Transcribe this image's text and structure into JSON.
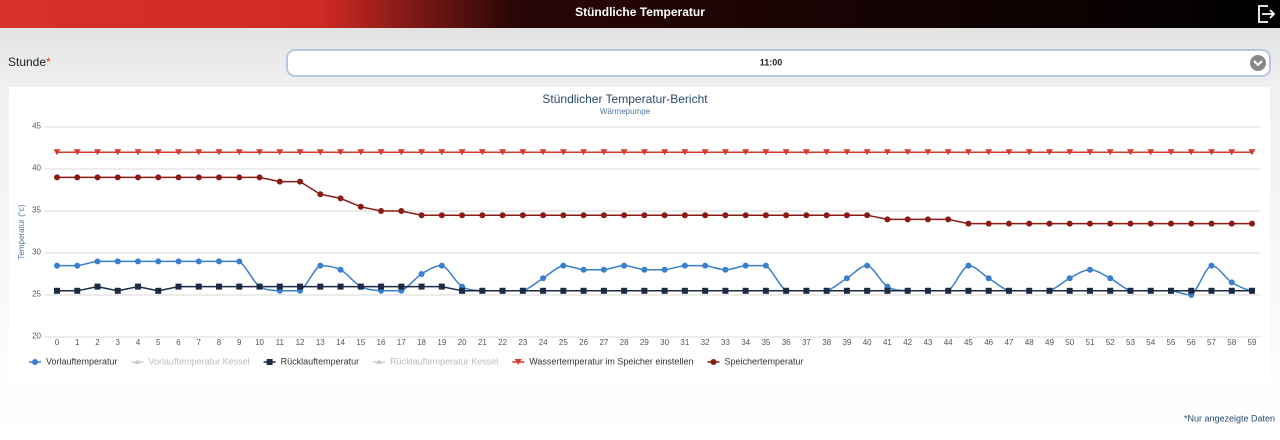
{
  "header": {
    "title": "Stündliche Temperatur"
  },
  "form": {
    "label": "Stunde",
    "required_mark": "*",
    "value": "11:00"
  },
  "footnote": "*Nur angezeigte Daten",
  "chart_data": {
    "type": "line",
    "title": "Stündlicher Temperatur-Bericht",
    "subtitle": "Wärmepumpe",
    "y_label": "Temperatur (°c)",
    "categories": [
      "0",
      "1",
      "2",
      "3",
      "4",
      "5",
      "6",
      "7",
      "8",
      "9",
      "10",
      "11",
      "12",
      "13",
      "14",
      "15",
      "16",
      "17",
      "18",
      "19",
      "20",
      "21",
      "22",
      "23",
      "24",
      "25",
      "26",
      "27",
      "28",
      "29",
      "30",
      "31",
      "32",
      "33",
      "34",
      "35",
      "36",
      "37",
      "38",
      "39",
      "40",
      "41",
      "42",
      "43",
      "44",
      "45",
      "46",
      "47",
      "48",
      "49",
      "50",
      "51",
      "52",
      "53",
      "54",
      "55",
      "56",
      "57",
      "58",
      "59"
    ],
    "ylim": [
      20,
      45
    ],
    "yticks": [
      20,
      25,
      30,
      35,
      40,
      45
    ],
    "grid": true,
    "legend": "bottom",
    "series": [
      {
        "name": "Vorlauftemperatur",
        "color": "#3a7fce",
        "marker": "circle",
        "smooth": true,
        "values": [
          28.5,
          28.5,
          29,
          29,
          29,
          29,
          29,
          29,
          29,
          29,
          26,
          25.5,
          25.5,
          28.5,
          28,
          26,
          25.5,
          25.5,
          27.5,
          28.5,
          26,
          25.5,
          25.5,
          25.5,
          27,
          28.5,
          28,
          28,
          28.5,
          28,
          28,
          28.5,
          28.5,
          28,
          28.5,
          28.5,
          25.5,
          25.5,
          25.5,
          27,
          28.5,
          26,
          25.5,
          25.5,
          25.5,
          28.5,
          27,
          25.5,
          25.5,
          25.5,
          27,
          28,
          27,
          25.5,
          25.5,
          25.5,
          25,
          28.5,
          26.5,
          25.5
        ]
      },
      {
        "name": "Vorlauftemperatur Kessel",
        "color": "#cccccc",
        "visible": false
      },
      {
        "name": "Rücklauftemperatur",
        "color": "#1c2a44",
        "marker": "square",
        "values": [
          25.5,
          25.5,
          26,
          25.5,
          26,
          25.5,
          26,
          26,
          26,
          26,
          26,
          26,
          26,
          26,
          26,
          26,
          26,
          26,
          26,
          26,
          25.5,
          25.5,
          25.5,
          25.5,
          25.5,
          25.5,
          25.5,
          25.5,
          25.5,
          25.5,
          25.5,
          25.5,
          25.5,
          25.5,
          25.5,
          25.5,
          25.5,
          25.5,
          25.5,
          25.5,
          25.5,
          25.5,
          25.5,
          25.5,
          25.5,
          25.5,
          25.5,
          25.5,
          25.5,
          25.5,
          25.5,
          25.5,
          25.5,
          25.5,
          25.5,
          25.5,
          25.5,
          25.5,
          25.5,
          25.5
        ]
      },
      {
        "name": "Rücklauftemperatur Kessel",
        "color": "#cccccc",
        "visible": false
      },
      {
        "name": "Wassertemperatur im Speicher einstellen",
        "color": "#d63a2e",
        "marker": "triangle-down",
        "values": [
          42,
          42,
          42,
          42,
          42,
          42,
          42,
          42,
          42,
          42,
          42,
          42,
          42,
          42,
          42,
          42,
          42,
          42,
          42,
          42,
          42,
          42,
          42,
          42,
          42,
          42,
          42,
          42,
          42,
          42,
          42,
          42,
          42,
          42,
          42,
          42,
          42,
          42,
          42,
          42,
          42,
          42,
          42,
          42,
          42,
          42,
          42,
          42,
          42,
          42,
          42,
          42,
          42,
          42,
          42,
          42,
          42,
          42,
          42,
          42
        ]
      },
      {
        "name": "Speichertemperatur",
        "color": "#8a1a14",
        "marker": "circle",
        "values": [
          39,
          39,
          39,
          39,
          39,
          39,
          39,
          39,
          39,
          39,
          39,
          38.5,
          38.5,
          37,
          36.5,
          35.5,
          35,
          35,
          34.5,
          34.5,
          34.5,
          34.5,
          34.5,
          34.5,
          34.5,
          34.5,
          34.5,
          34.5,
          34.5,
          34.5,
          34.5,
          34.5,
          34.5,
          34.5,
          34.5,
          34.5,
          34.5,
          34.5,
          34.5,
          34.5,
          34.5,
          34,
          34,
          34,
          34,
          33.5,
          33.5,
          33.5,
          33.5,
          33.5,
          33.5,
          33.5,
          33.5,
          33.5,
          33.5,
          33.5,
          33.5,
          33.5,
          33.5,
          33.5
        ]
      }
    ]
  }
}
